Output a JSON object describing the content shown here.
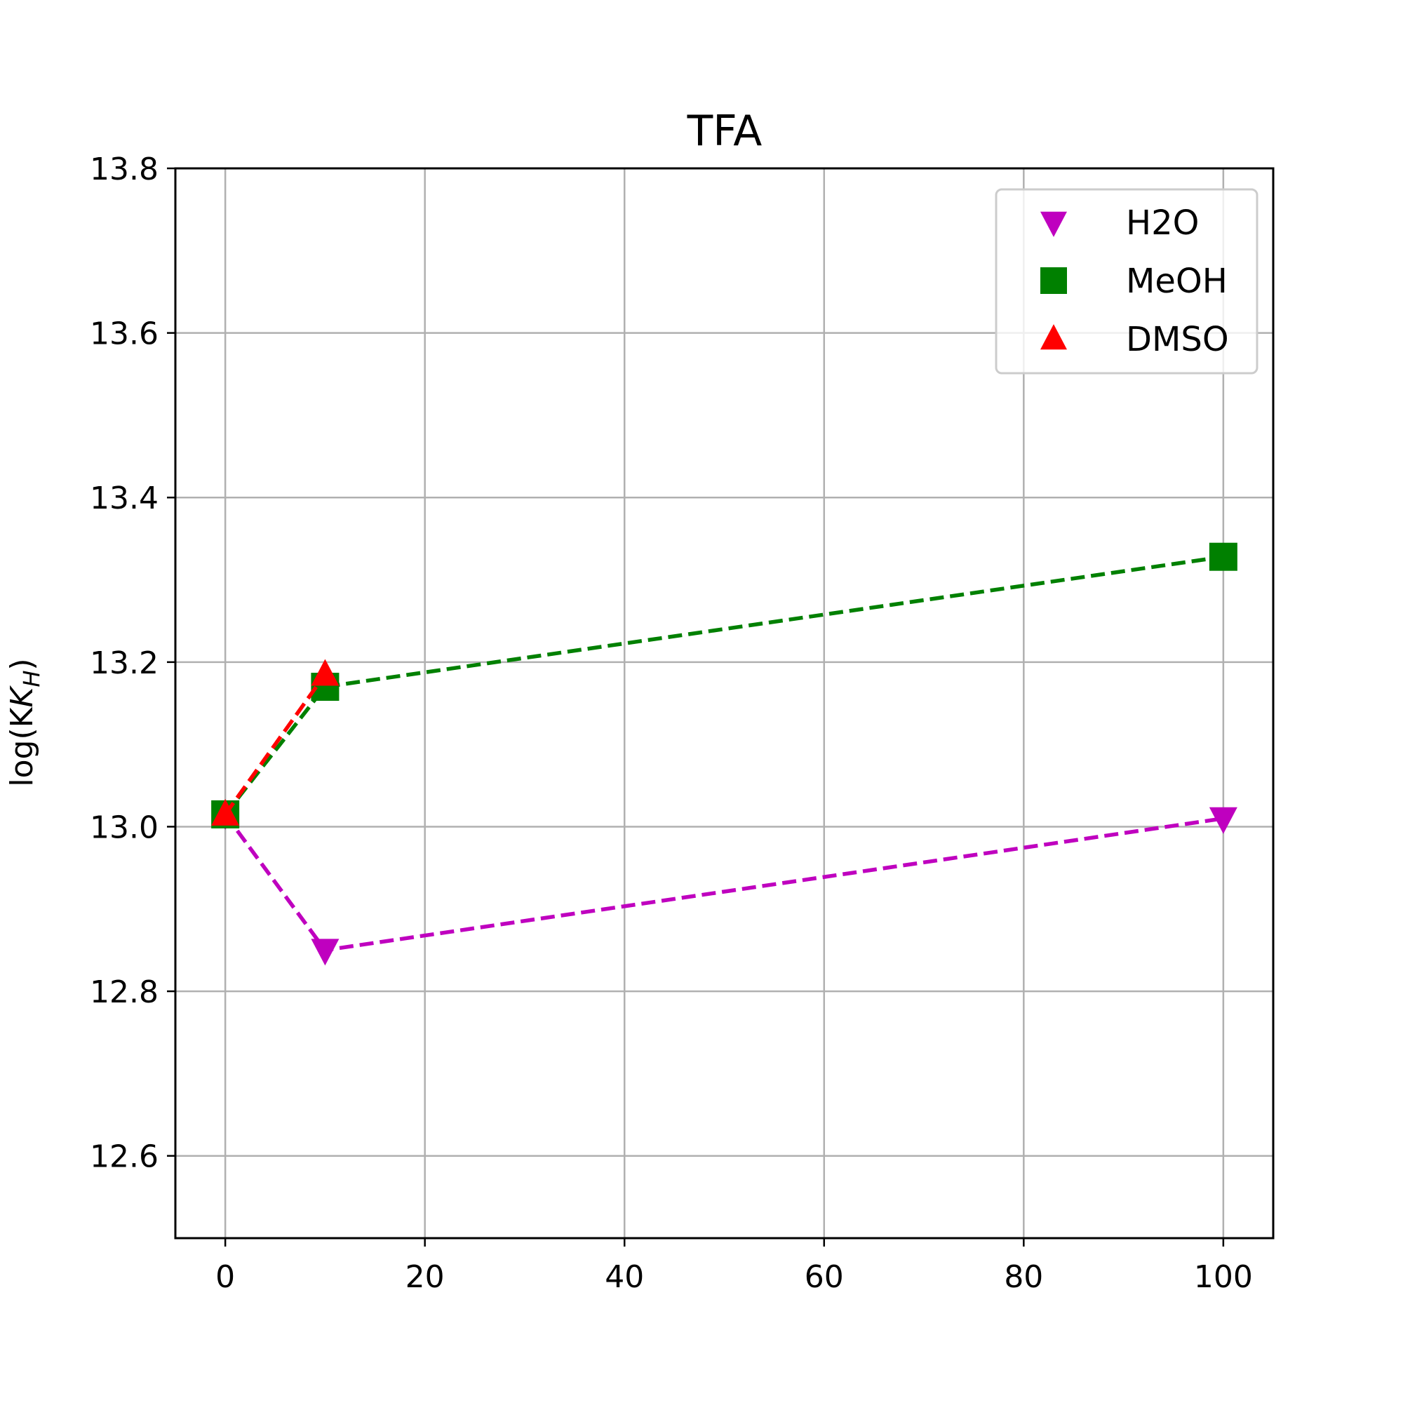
{
  "chart_data": {
    "type": "line",
    "title": "TFA",
    "xlabel": "",
    "ylabel": "log(K",
    "ylabel_sub": "H",
    "ylabel_close": ")",
    "xlim": [
      -5,
      105
    ],
    "ylim": [
      12.5,
      13.8
    ],
    "xticks": [
      0,
      20,
      40,
      60,
      80,
      100
    ],
    "xtick_labels": [
      "0",
      "20",
      "40",
      "60",
      "80",
      "100"
    ],
    "yticks": [
      12.6,
      12.8,
      13.0,
      13.2,
      13.4,
      13.6,
      13.8
    ],
    "ytick_labels": [
      "12.6",
      "12.8",
      "13.0",
      "13.2",
      "13.4",
      "13.6",
      "13.8"
    ],
    "grid": true,
    "legend_position": "top-right",
    "line_style": "dashed",
    "series": [
      {
        "name": "H2O",
        "color": "#bf00bf",
        "marker": "triangle-down",
        "x": [
          0,
          10,
          100
        ],
        "y": [
          13.015,
          12.85,
          13.01
        ]
      },
      {
        "name": "MeOH",
        "color": "#008000",
        "marker": "square",
        "x": [
          0,
          10,
          100
        ],
        "y": [
          13.015,
          13.17,
          13.328
        ]
      },
      {
        "name": "DMSO",
        "color": "#ff0000",
        "marker": "triangle-up",
        "x": [
          0,
          10
        ],
        "y": [
          13.015,
          13.185
        ]
      }
    ]
  }
}
